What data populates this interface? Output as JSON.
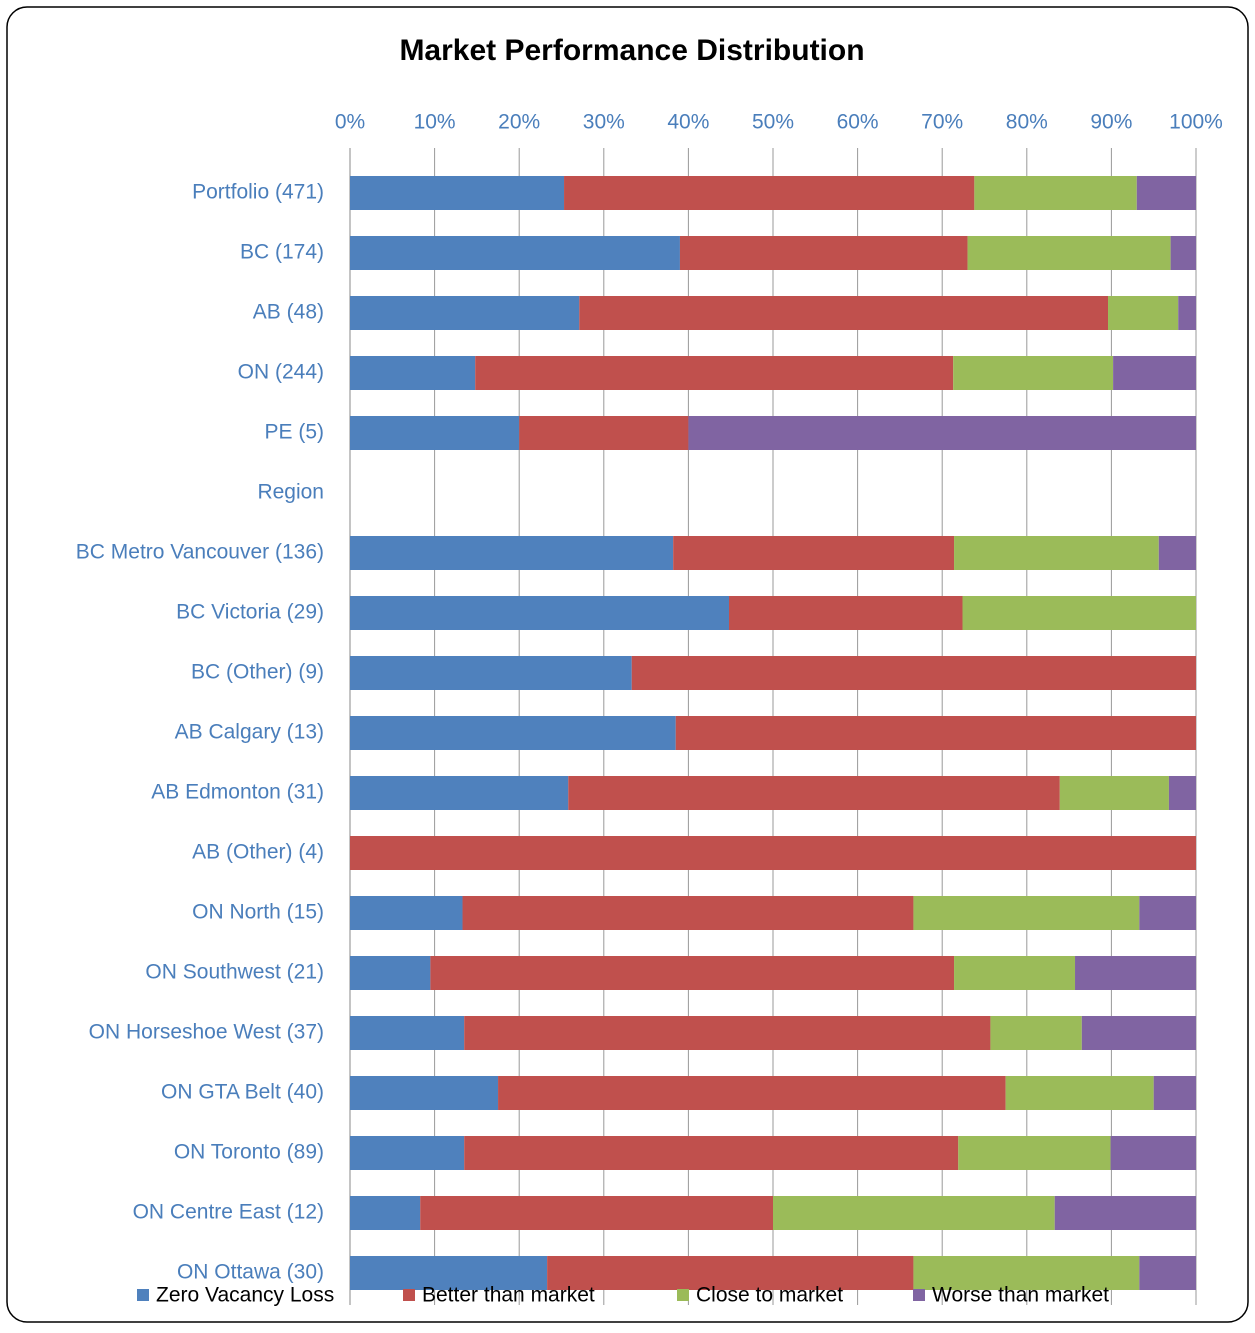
{
  "chart_data": {
    "type": "stacked_barh",
    "title": "Market Performance Distribution",
    "categories": [
      "Portfolio (471)",
      "BC (174)",
      "AB (48)",
      "ON (244)",
      "PE (5)",
      "Region",
      "BC Metro Vancouver (136)",
      "BC Victoria (29)",
      "BC (Other) (9)",
      "AB Calgary (13)",
      "AB Edmonton (31)",
      "AB (Other) (4)",
      "ON North (15)",
      "ON Southwest (21)",
      "ON Horseshoe West (37)",
      "ON GTA Belt (40)",
      "ON Toronto (89)",
      "ON Centre East (12)",
      "ON Ottawa (30)"
    ],
    "series": [
      {
        "name": "Zero Vacancy Loss",
        "color": "#4f81bd",
        "values": [
          25.3,
          39.0,
          27.1,
          14.8,
          20,
          null,
          38.2,
          44.8,
          33.3,
          38.5,
          25.8,
          0,
          13.3,
          9.5,
          13.5,
          17.5,
          13.5,
          8.3,
          23.3
        ]
      },
      {
        "name": "Better than market",
        "color": "#c0504d",
        "values": [
          48.5,
          34.0,
          62.5,
          56.5,
          20,
          null,
          33.2,
          27.6,
          66.7,
          61.5,
          58.1,
          100,
          53.3,
          61.9,
          62.2,
          60,
          58.4,
          41.7,
          43.3
        ]
      },
      {
        "name": "Close to market",
        "color": "#9bbb59",
        "values": [
          19.2,
          24.0,
          8.3,
          18.9,
          0,
          null,
          24.2,
          27.6,
          0,
          0,
          12.9,
          0,
          26.7,
          14.3,
          10.8,
          17.5,
          18.0,
          33.3,
          26.7
        ]
      },
      {
        "name": "Worse than market",
        "color": "#8064a2",
        "values": [
          7.0,
          3.0,
          2.1,
          9.8,
          60,
          null,
          4.4,
          0,
          0,
          0,
          3.2,
          0,
          6.7,
          14.3,
          13.5,
          5,
          10.1,
          16.7,
          6.7
        ]
      }
    ],
    "xlim": [
      0,
      100
    ],
    "xticks": [
      {
        "value": 0,
        "label": "0%"
      },
      {
        "value": 10,
        "label": "10%"
      },
      {
        "value": 20,
        "label": "20%"
      },
      {
        "value": 30,
        "label": "30%"
      },
      {
        "value": 40,
        "label": "40%"
      },
      {
        "value": 50,
        "label": "50%"
      },
      {
        "value": 60,
        "label": "60%"
      },
      {
        "value": 70,
        "label": "70%"
      },
      {
        "value": 80,
        "label": "80%"
      },
      {
        "value": 90,
        "label": "90%"
      },
      {
        "value": 100,
        "label": "100%"
      }
    ],
    "grid": true,
    "legend": "bottom"
  }
}
